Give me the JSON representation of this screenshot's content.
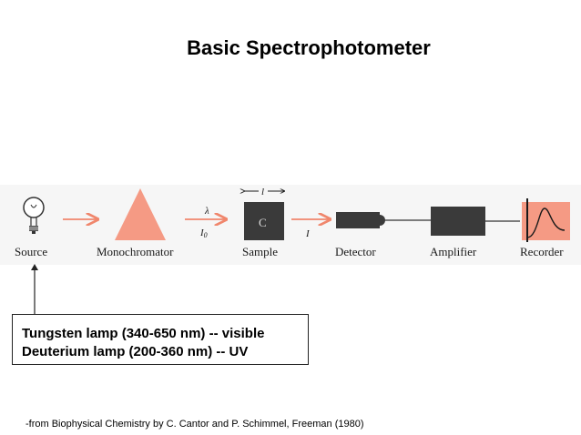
{
  "title": "Basic Spectrophotometer",
  "diagram": {
    "components": [
      "Source",
      "Monochromator",
      "Sample",
      "Detector",
      "Amplifier",
      "Recorder"
    ],
    "symbols": {
      "wavelength": "λ",
      "incident_intensity": "I",
      "incident_subscript": "0",
      "path_length": "l",
      "concentration": "C",
      "transmitted_intensity": "I"
    },
    "accent_color": "#f0866c",
    "box_color": "#3a3a3a"
  },
  "lamp_box": {
    "lines": [
      "Tungsten lamp (340-650 nm) -- visible",
      "Deuterium lamp (200-360 nm) -- UV"
    ]
  },
  "citation": "-from Biophysical Chemistry by C. Cantor and P. Schimmel, Freeman (1980)"
}
